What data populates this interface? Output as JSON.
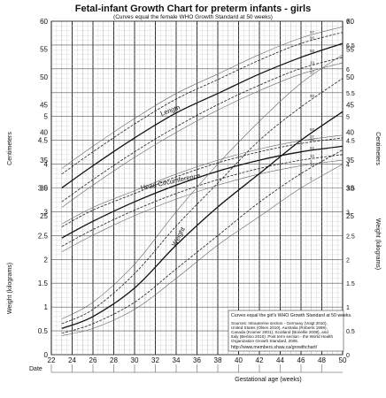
{
  "chart_data": {
    "type": "line",
    "title": "Fetal-infant Growth Chart for preterm infants - girls",
    "subtitle": "(Curves equal the female WHO Growth Standard at 50 weeks)",
    "xlabel": "Gestational age (weeks)",
    "x_date_label": "Date",
    "ylabel_left_upper": "Centimeters",
    "ylabel_left_lower": "Weight (kilograms)",
    "ylabel_right_upper": "Centimeters",
    "ylabel_right_lower": "Weight (kilograms)",
    "xlim": [
      22,
      50
    ],
    "x_ticks": [
      "22",
      "24",
      "26",
      "28",
      "30",
      "32",
      "34",
      "36",
      "38",
      "40",
      "42",
      "44",
      "46",
      "48",
      "50"
    ],
    "ylim_weight_kg": [
      0,
      7
    ],
    "ylim_cm_right": [
      0,
      60
    ],
    "left_cm_ticks": [
      "25",
      "30",
      "35",
      "40",
      "45",
      "50",
      "55",
      "60"
    ],
    "left_kg_ticks": [
      "0",
      "0.5",
      "1",
      "1.5",
      "2",
      "2.5",
      "3",
      "3.5",
      "4",
      "4.5",
      "5"
    ],
    "right_cm_ticks": [
      "25",
      "30",
      "35",
      "40",
      "45",
      "50",
      "55",
      "60"
    ],
    "right_kg_ticks": [
      "0",
      "0.5",
      "1",
      "1.5",
      "2",
      "2.5",
      "3",
      "3.5",
      "4",
      "4.5",
      "5",
      "5.5",
      "6",
      "6.5",
      "7"
    ],
    "grid": true,
    "groups": [
      {
        "label": "Length",
        "unit": "cm",
        "x": [
          23,
          26,
          30,
          34,
          38,
          42,
          46,
          50
        ],
        "series": [
          {
            "name": "97",
            "values": [
              33.5,
              37.5,
              42.5,
              47,
              50.5,
              54,
              57,
              59
            ]
          },
          {
            "name": "90",
            "values": [
              32.5,
              36.5,
              41.5,
              46,
              49.5,
              53,
              56,
              58
            ]
          },
          {
            "name": "50",
            "values": [
              30,
              34,
              39,
              43.5,
              47,
              50.5,
              53.5,
              56
            ]
          },
          {
            "name": "10",
            "values": [
              27.5,
              31.5,
              36.5,
              41,
              45,
              48.5,
              51.5,
              53.5
            ]
          },
          {
            "name": "3",
            "values": [
              26.5,
              30.5,
              35.5,
              40,
              44,
              47.5,
              50.5,
              52.5
            ]
          }
        ]
      },
      {
        "label": "Head Circumference",
        "unit": "cm",
        "x": [
          23,
          26,
          30,
          34,
          38,
          42,
          46,
          50
        ],
        "series": [
          {
            "name": "97",
            "values": [
              23.5,
              26.5,
              29.5,
              32.5,
              35,
              37,
              38.5,
              39.5
            ]
          },
          {
            "name": "90",
            "values": [
              23,
              26,
              29,
              32,
              34.5,
              36.5,
              38,
              39
            ]
          },
          {
            "name": "50",
            "values": [
              21,
              24,
              27.5,
              30.5,
              33,
              35,
              36.5,
              37.5
            ]
          },
          {
            "name": "10",
            "values": [
              19.5,
              22.5,
              26,
              29,
              31.5,
              33.5,
              35,
              36
            ]
          },
          {
            "name": "3",
            "values": [
              18.5,
              21.5,
              25,
              28,
              30.5,
              32.5,
              34,
              35
            ]
          }
        ]
      },
      {
        "label": "Weight",
        "unit": "kg",
        "x": [
          23,
          26,
          30,
          34,
          38,
          42,
          46,
          50
        ],
        "series": [
          {
            "name": "97",
            "values": [
              0.75,
              1.1,
              1.9,
              3.0,
              4.0,
              4.9,
              5.7,
              6.3
            ]
          },
          {
            "name": "90",
            "values": [
              0.65,
              0.95,
              1.7,
              2.7,
              3.6,
              4.5,
              5.2,
              5.8
            ]
          },
          {
            "name": "50",
            "values": [
              0.55,
              0.8,
              1.4,
              2.3,
              3.1,
              3.8,
              4.5,
              5.1
            ]
          },
          {
            "name": "10",
            "values": [
              0.45,
              0.65,
              1.1,
              1.8,
              2.5,
              3.2,
              3.8,
              4.3
            ]
          },
          {
            "name": "3",
            "values": [
              0.4,
              0.55,
              0.95,
              1.6,
              2.3,
              2.9,
              3.5,
              4.0
            ]
          }
        ]
      }
    ],
    "notes": {
      "box_heading": "Curves equal the girl's WHO Growth Standard at 50 weeks.",
      "lines": [
        "Sources: Intrauterine section - Germany (Voigt 2010),",
        "United States (Olsen 2010), Australia (Roberts 1999),",
        "Canada (Kramer 2001), Scotland (Bonellie 2008), and",
        "Italy (Bertino 2010). Post term section - the World Health",
        "Organization Growth Standard, 2006."
      ],
      "url": "http://www.members.shaw.ca/growthchart/"
    },
    "colors": {
      "median": "#111111",
      "centile": "#222222",
      "grid": "#9a9a9a"
    }
  }
}
